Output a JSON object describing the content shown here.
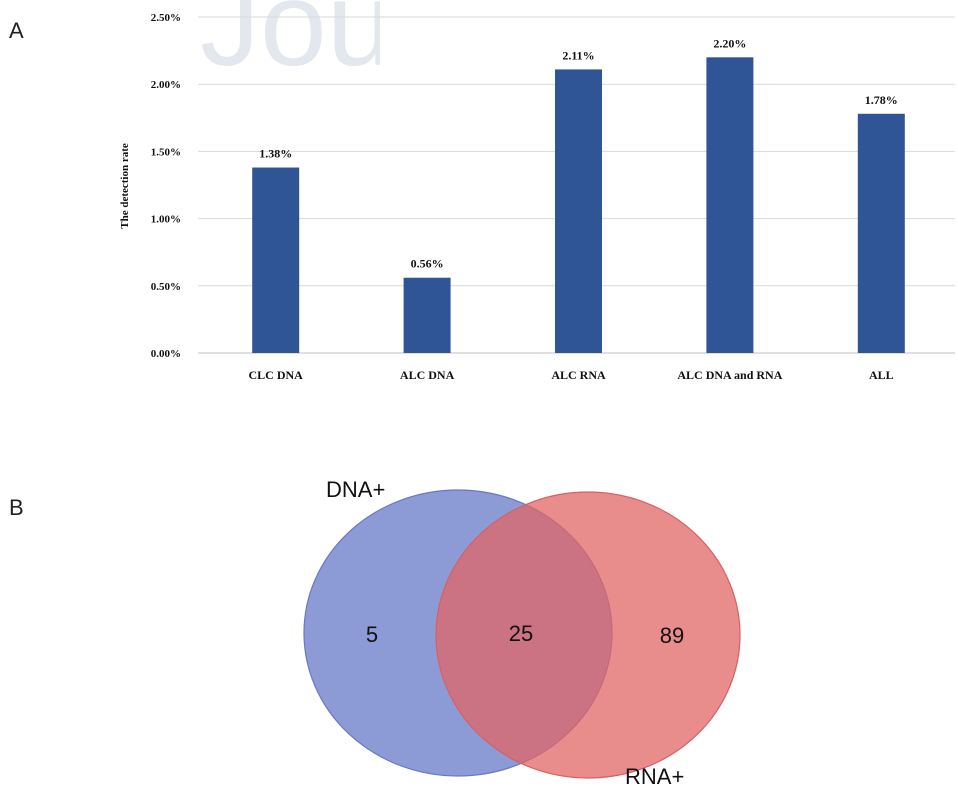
{
  "panels": {
    "a": "A",
    "b": "B"
  },
  "watermark_text": "Jou",
  "chart_data": [
    {
      "type": "bar",
      "categories": [
        "CLC DNA",
        "ALC DNA",
        "ALC RNA",
        "ALC DNA and RNA",
        "ALL"
      ],
      "values": [
        1.38,
        0.56,
        2.11,
        2.2,
        1.78
      ],
      "value_labels": [
        "1.38%",
        "0.56%",
        "2.11%",
        "2.20%",
        "1.78%"
      ],
      "ylabel": "The detection rate",
      "ylim": [
        0,
        2.5
      ],
      "yticks": [
        0,
        0.5,
        1.0,
        1.5,
        2.0,
        2.5
      ],
      "ytick_labels": [
        "0.00%",
        "0.50%",
        "1.00%",
        "1.50%",
        "2.00%",
        "2.50%"
      ],
      "bar_color": "#2f5597",
      "grid": true
    },
    {
      "type": "venn",
      "sets": [
        "DNA+",
        "RNA+"
      ],
      "only_a": "5",
      "intersection": "25",
      "only_b": "89",
      "colors": {
        "a": "#6f82cc",
        "b": "#e06566",
        "overlap": "#a8526f"
      }
    }
  ]
}
